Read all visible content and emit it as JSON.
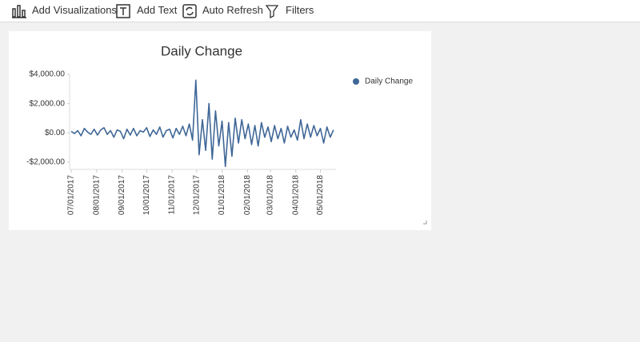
{
  "toolbar": {
    "items": [
      "Add Visualizations",
      "Add Text",
      "Auto Refresh",
      "Filters"
    ]
  },
  "chart_data": {
    "type": "line",
    "title": "Daily Change",
    "x": [
      "07/01/2017",
      "07/05/2017",
      "07/09/2017",
      "07/13/2017",
      "07/17/2017",
      "07/21/2017",
      "07/25/2017",
      "07/29/2017",
      "08/02/2017",
      "08/06/2017",
      "08/10/2017",
      "08/14/2017",
      "08/18/2017",
      "08/22/2017",
      "08/26/2017",
      "08/30/2017",
      "09/03/2017",
      "09/07/2017",
      "09/11/2017",
      "09/15/2017",
      "09/19/2017",
      "09/23/2017",
      "09/27/2017",
      "10/01/2017",
      "10/05/2017",
      "10/09/2017",
      "10/13/2017",
      "10/17/2017",
      "10/21/2017",
      "10/25/2017",
      "10/29/2017",
      "11/02/2017",
      "11/06/2017",
      "11/10/2017",
      "11/14/2017",
      "11/18/2017",
      "11/22/2017",
      "11/26/2017",
      "11/30/2017",
      "12/04/2017",
      "12/08/2017",
      "12/12/2017",
      "12/16/2017",
      "12/20/2017",
      "12/24/2017",
      "12/28/2017",
      "01/01/2018",
      "01/05/2018",
      "01/09/2018",
      "01/13/2018",
      "01/17/2018",
      "01/21/2018",
      "01/25/2018",
      "01/29/2018",
      "02/02/2018",
      "02/06/2018",
      "02/10/2018",
      "02/14/2018",
      "02/18/2018",
      "02/22/2018",
      "02/26/2018",
      "03/02/2018",
      "03/06/2018",
      "03/10/2018",
      "03/14/2018",
      "03/18/2018",
      "03/22/2018",
      "03/26/2018",
      "03/30/2018",
      "04/03/2018",
      "04/07/2018",
      "04/11/2018",
      "04/15/2018",
      "04/19/2018",
      "04/23/2018",
      "04/27/2018",
      "05/01/2018",
      "05/05/2018",
      "05/09/2018",
      "05/13/2018",
      "05/17/2018"
    ],
    "series": [
      {
        "name": "Daily Change",
        "color": "#3f6797",
        "values": [
          100,
          -50,
          150,
          -200,
          300,
          50,
          -100,
          250,
          -150,
          200,
          350,
          -100,
          150,
          -300,
          200,
          100,
          -400,
          250,
          -150,
          300,
          -200,
          150,
          50,
          350,
          -250,
          200,
          -100,
          400,
          -300,
          150,
          250,
          -350,
          300,
          -100,
          450,
          -200,
          600,
          -500,
          3600,
          -1500,
          900,
          -1200,
          2000,
          -1800,
          1500,
          -900,
          800,
          -2300,
          700,
          -1600,
          1000,
          -700,
          900,
          -400,
          600,
          -800,
          500,
          -900,
          700,
          -300,
          400,
          -600,
          500,
          -400,
          300,
          -700,
          450,
          -300,
          200,
          -500,
          900,
          -400,
          600,
          -300,
          500,
          -200,
          300,
          -700,
          400,
          -300,
          200
        ]
      }
    ],
    "xlim": [
      "06/29/2017",
      "05/20/2018"
    ],
    "xticks": [
      "07/01/2017",
      "08/01/2017",
      "09/01/2017",
      "10/01/2017",
      "11/01/2017",
      "12/01/2017",
      "01/01/2018",
      "02/01/2018",
      "03/01/2018",
      "04/01/2018",
      "05/01/2018"
    ],
    "ylim": [
      -2500,
      4000
    ],
    "yticks": [
      {
        "value": -2000,
        "label": "-$2,000.00"
      },
      {
        "value": 0,
        "label": "$0.00"
      },
      {
        "value": 2000,
        "label": "$2,000.00"
      },
      {
        "value": 4000,
        "label": "$4,000.00"
      }
    ],
    "legend": "top-right"
  }
}
